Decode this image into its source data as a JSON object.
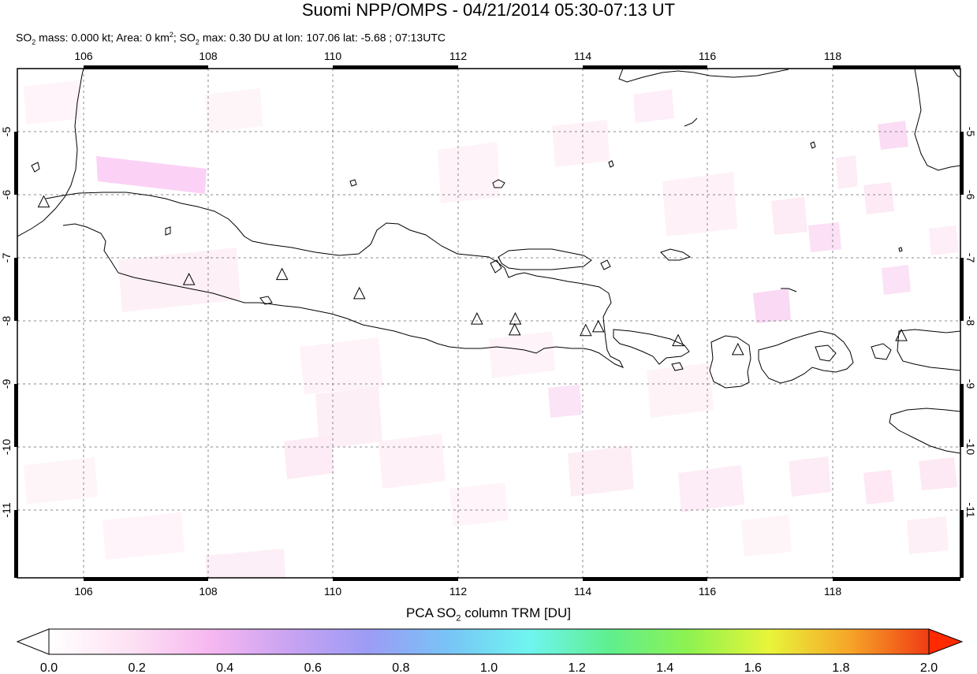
{
  "header": {
    "title": "Suomi NPP/OMPS - 04/21/2014 05:30-07:13 UT",
    "so2_mass_label": "SO",
    "so2_mass_sub": "2",
    "so2_mass_rest": " mass: 0.000 kt; Area: 0 km",
    "area_sup": "2",
    "so2_max_label": "; SO",
    "so2_max_sub": "2",
    "so2_max_rest": " max: 0.30 DU at lon: 107.06 lat: -5.68 ; 07:13UTC"
  },
  "map": {
    "lon_range": [
      105,
      120
    ],
    "lat_range": [
      -12,
      -4
    ],
    "lon_ticks": [
      "106",
      "108",
      "110",
      "112",
      "114",
      "116",
      "118"
    ],
    "lat_ticks": [
      "-5",
      "-6",
      "-7",
      "-8",
      "-9",
      "-10",
      "-11"
    ],
    "grid": "dashed",
    "coastline_color": "#000000",
    "volcano_markers": [
      {
        "lon": 105.42,
        "lat": -6.1
      },
      {
        "lon": 107.73,
        "lat": -7.32
      },
      {
        "lon": 109.21,
        "lat": -7.24
      },
      {
        "lon": 110.44,
        "lat": -7.54
      },
      {
        "lon": 112.31,
        "lat": -7.94
      },
      {
        "lon": 112.92,
        "lat": -7.94
      },
      {
        "lon": 112.91,
        "lat": -8.11
      },
      {
        "lon": 114.04,
        "lat": -8.12
      },
      {
        "lon": 114.24,
        "lat": -8.06
      },
      {
        "lon": 115.51,
        "lat": -8.28
      },
      {
        "lon": 116.46,
        "lat": -8.42
      },
      {
        "lon": 119.06,
        "lat": -8.2
      }
    ]
  },
  "colorbar": {
    "title_prefix": "PCA SO",
    "title_sub": "2",
    "title_suffix": " column TRM [DU]",
    "min": 0.0,
    "max": 2.0,
    "tick_labels": [
      "0.0",
      "0.2",
      "0.4",
      "0.6",
      "0.8",
      "1.0",
      "1.2",
      "1.4",
      "1.6",
      "1.8",
      "2.0"
    ],
    "colors": [
      "#ffffff",
      "#fde2f3",
      "#f7b8f0",
      "#c9a3f2",
      "#9c9cf5",
      "#78c4f6",
      "#6ff5f0",
      "#5fef8f",
      "#8ef250",
      "#e8f53a",
      "#f6a628",
      "#f03c14"
    ],
    "under_color": "#ffffff",
    "over_color": "#ff2a00"
  }
}
